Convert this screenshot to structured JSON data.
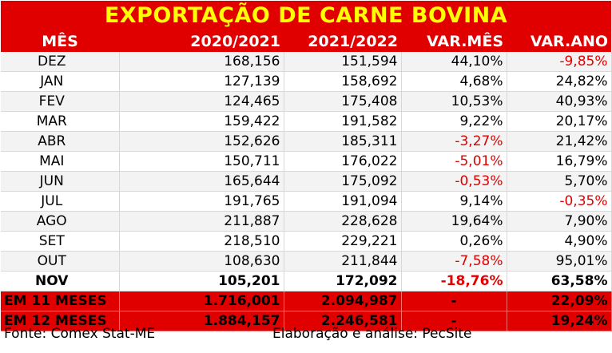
{
  "title": "EXPORTAÇÃO DE CARNE BOVINA",
  "headers": [
    "MÊS",
    "2020/2021",
    "2021/2022",
    "VAR.MÊS",
    "VAR.ANO"
  ],
  "rows": [
    [
      "DEZ",
      "168,156",
      "151,594",
      "44,10%",
      "-9,85%"
    ],
    [
      "JAN",
      "127,139",
      "158,692",
      "4,68%",
      "24,82%"
    ],
    [
      "FEV",
      "124,465",
      "175,408",
      "10,53%",
      "40,93%"
    ],
    [
      "MAR",
      "159,422",
      "191,582",
      "9,22%",
      "20,17%"
    ],
    [
      "ABR",
      "152,626",
      "185,311",
      "-3,27%",
      "21,42%"
    ],
    [
      "MAI",
      "150,711",
      "176,022",
      "-5,01%",
      "16,79%"
    ],
    [
      "JUN",
      "165,644",
      "175,092",
      "-0,53%",
      "5,70%"
    ],
    [
      "JUL",
      "191,765",
      "191,094",
      "9,14%",
      "-0,35%"
    ],
    [
      "AGO",
      "211,887",
      "228,628",
      "19,64%",
      "7,90%"
    ],
    [
      "SET",
      "218,510",
      "229,221",
      "0,26%",
      "4,90%"
    ],
    [
      "OUT",
      "108,630",
      "211,844",
      "-7,58%",
      "95,01%"
    ],
    [
      "NOV",
      "105,201",
      "172,092",
      "-18,76%",
      "63,58%"
    ]
  ],
  "summary": [
    [
      "EM 11 MESES",
      "1.716,001",
      "2.094,987",
      "-",
      "22,09%"
    ],
    [
      "EM 12 MESES",
      "1.884,157",
      "2.246,581",
      "-",
      "19,24%"
    ]
  ],
  "footer": {
    "source": "Fonte: Comex Stat-ME",
    "author": "Elaboração e análise: PecSite"
  },
  "colors": {
    "header_bg": "#e00000",
    "title_text": "#ffff00",
    "negative_text": "#e00000"
  }
}
